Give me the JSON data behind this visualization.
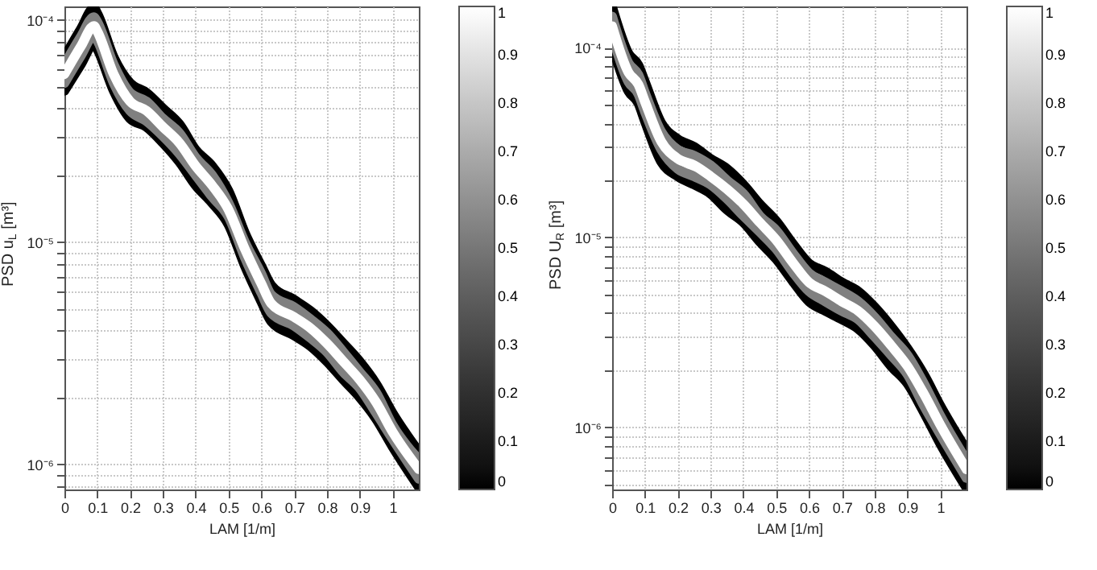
{
  "chart_data": [
    {
      "type": "line",
      "xlabel": "LAM [1/m]",
      "ylabel": "PSD u$_{L}$ [m³]",
      "log": "y",
      "grid": true,
      "x": [
        0,
        0.05,
        0.09,
        0.1,
        0.15,
        0.2,
        0.25,
        0.3,
        0.35,
        0.4,
        0.45,
        0.5,
        0.55,
        0.6,
        0.63,
        0.7,
        0.75,
        0.8,
        0.85,
        0.9,
        0.95,
        1.0,
        1.08
      ],
      "xlim": [
        0,
        1.08
      ],
      "xticks": [
        0,
        0.1,
        0.2,
        0.3,
        0.4,
        0.5,
        0.6,
        0.7,
        0.8,
        0.9,
        1
      ],
      "ylim": [
        7.7e-07,
        0.000115
      ],
      "yticks": [
        {
          "value": 8e-07,
          "label": null
        },
        {
          "value": 9e-07,
          "label": null
        },
        {
          "value": 1e-06,
          "label": "10⁻⁶"
        },
        {
          "value": 2e-06,
          "label": null
        },
        {
          "value": 3e-06,
          "label": null
        },
        {
          "value": 4e-06,
          "label": null
        },
        {
          "value": 5e-06,
          "label": null
        },
        {
          "value": 6e-06,
          "label": null
        },
        {
          "value": 7e-06,
          "label": null
        },
        {
          "value": 8e-06,
          "label": null
        },
        {
          "value": 9e-06,
          "label": null
        },
        {
          "value": 1e-05,
          "label": "10⁻⁵"
        },
        {
          "value": 2e-05,
          "label": null
        },
        {
          "value": 3e-05,
          "label": null
        },
        {
          "value": 4e-05,
          "label": null
        },
        {
          "value": 5e-05,
          "label": null
        },
        {
          "value": 6e-05,
          "label": null
        },
        {
          "value": 7e-05,
          "label": null
        },
        {
          "value": 8e-05,
          "label": null
        },
        {
          "value": 9e-05,
          "label": null
        },
        {
          "value": 0.0001,
          "label": "10⁻⁴"
        }
      ],
      "clim": [
        0,
        1
      ],
      "cticks": [
        0,
        0.1,
        0.2,
        0.3,
        0.4,
        0.5,
        0.6,
        0.7,
        0.8,
        0.9,
        1
      ],
      "series": [
        {
          "color": "#000000",
          "values": [
            6.8e-05,
            9.1e-05,
            0.000113,
            0.000107,
            6.8e-05,
            5.2e-05,
            4.7e-05,
            4e-05,
            3.4e-05,
            2.6e-05,
            2.2e-05,
            1.7e-05,
            1.1e-05,
            7.8e-06,
            6.4e-06,
            5.5e-06,
            4.9e-06,
            4.2e-06,
            3.5e-06,
            2.9e-06,
            2.3e-06,
            1.7e-06,
            1.14e-06
          ]
        },
        {
          "color": "#000000",
          "values": [
            4.8e-05,
            6.3e-05,
            7.8e-05,
            7.4e-05,
            4.8e-05,
            3.6e-05,
            3.3e-05,
            2.8e-05,
            2.3e-05,
            1.8e-05,
            1.5e-05,
            1.2e-05,
            7.8e-06,
            5.4e-06,
            4.4e-06,
            3.8e-06,
            3.4e-06,
            2.9e-06,
            2.4e-06,
            2e-06,
            1.6e-06,
            1.2e-06,
            7.9e-07
          ]
        },
        {
          "color": "#808080",
          "values": [
            6.3e-05,
            8.4e-05,
            0.000103,
            9.8e-05,
            6.3e-05,
            4.7e-05,
            4.3e-05,
            3.6e-05,
            3.1e-05,
            2.4e-05,
            2e-05,
            1.5e-05,
            1e-05,
            7.2e-06,
            5.8e-06,
            5.1e-06,
            4.5e-06,
            3.9e-06,
            3.2e-06,
            2.6e-06,
            2.1e-06,
            1.5e-06,
            1.05e-06
          ]
        },
        {
          "color": "#808080",
          "values": [
            5.2e-05,
            6.9e-05,
            8.5e-05,
            8.1e-05,
            5.2e-05,
            3.9e-05,
            3.5e-05,
            3e-05,
            2.5e-05,
            2e-05,
            1.6e-05,
            1.3e-05,
            8.5e-06,
            5.9e-06,
            4.8e-06,
            4.2e-06,
            3.7e-06,
            3.2e-06,
            2.6e-06,
            2.2e-06,
            1.7e-06,
            1.3e-06,
            8.6e-07
          ]
        },
        {
          "color": "#ffffff",
          "values": [
            5.7e-05,
            7.6e-05,
            9.4e-05,
            8.9e-05,
            5.7e-05,
            4.3e-05,
            3.9e-05,
            3.3e-05,
            2.8e-05,
            2.2e-05,
            1.8e-05,
            1.4e-05,
            9.3e-06,
            6.5e-06,
            5.3e-06,
            4.6e-06,
            4.1e-06,
            3.5e-06,
            2.9e-06,
            2.4e-06,
            1.9e-06,
            1.4e-06,
            9.5e-07
          ]
        }
      ]
    },
    {
      "type": "line",
      "xlabel": "LAM [1/m]",
      "ylabel": "PSD U$_{R}$ [m³]",
      "log": "y",
      "grid": true,
      "x": [
        0,
        0.05,
        0.08,
        0.1,
        0.15,
        0.2,
        0.25,
        0.3,
        0.35,
        0.4,
        0.45,
        0.5,
        0.55,
        0.6,
        0.65,
        0.7,
        0.75,
        0.8,
        0.85,
        0.9,
        0.95,
        1.0,
        1.08
      ],
      "xlim": [
        0,
        1.08
      ],
      "xticks": [
        0,
        0.1,
        0.2,
        0.3,
        0.4,
        0.5,
        0.6,
        0.7,
        0.8,
        0.9,
        1
      ],
      "ylim": [
        4.7e-07,
        0.000165
      ],
      "yticks": [
        {
          "value": 5e-07,
          "label": null
        },
        {
          "value": 6e-07,
          "label": null
        },
        {
          "value": 7e-07,
          "label": null
        },
        {
          "value": 8e-07,
          "label": null
        },
        {
          "value": 9e-07,
          "label": null
        },
        {
          "value": 1e-06,
          "label": "10⁻⁶"
        },
        {
          "value": 2e-06,
          "label": null
        },
        {
          "value": 3e-06,
          "label": null
        },
        {
          "value": 4e-06,
          "label": null
        },
        {
          "value": 5e-06,
          "label": null
        },
        {
          "value": 6e-06,
          "label": null
        },
        {
          "value": 7e-06,
          "label": null
        },
        {
          "value": 8e-06,
          "label": null
        },
        {
          "value": 9e-06,
          "label": null
        },
        {
          "value": 1e-05,
          "label": "10⁻⁵"
        },
        {
          "value": 2e-05,
          "label": null
        },
        {
          "value": 3e-05,
          "label": null
        },
        {
          "value": 4e-05,
          "label": null
        },
        {
          "value": 5e-05,
          "label": null
        },
        {
          "value": 6e-05,
          "label": null
        },
        {
          "value": 7e-05,
          "label": null
        },
        {
          "value": 8e-05,
          "label": null
        },
        {
          "value": 9e-05,
          "label": null
        },
        {
          "value": 0.0001,
          "label": "10⁻⁴"
        }
      ],
      "clim": [
        0,
        1
      ],
      "cticks": [
        0,
        0.1,
        0.2,
        0.3,
        0.4,
        0.5,
        0.6,
        0.7,
        0.8,
        0.9,
        1
      ],
      "series": [
        {
          "color": "#000000",
          "values": [
            0.000164,
            9.3e-05,
            8.1e-05,
            6.6e-05,
            4e-05,
            3.3e-05,
            3e-05,
            2.6e-05,
            2.3e-05,
            1.9e-05,
            1.5e-05,
            1.22e-05,
            9.3e-06,
            7.3e-06,
            6.6e-06,
            5.8e-06,
            5.2e-06,
            4.3e-06,
            3.4e-06,
            2.6e-06,
            1.9e-06,
            1.3e-06,
            7.6e-07
          ]
        },
        {
          "color": "#000000",
          "values": [
            0.000103,
            5.9e-05,
            5.1e-05,
            4.1e-05,
            2.5e-05,
            2.1e-05,
            1.9e-05,
            1.7e-05,
            1.4e-05,
            1.2e-05,
            9.5e-06,
            7.7e-06,
            5.9e-06,
            4.6e-06,
            4.1e-06,
            3.7e-06,
            3.3e-06,
            2.7e-06,
            2.1e-06,
            1.7e-06,
            1.2e-06,
            8.2e-07,
            4.8e-07
          ]
        },
        {
          "color": "#808080",
          "values": [
            0.000146,
            8.3e-05,
            7.2e-05,
            5.8e-05,
            3.6e-05,
            2.9e-05,
            2.7e-05,
            2.4e-05,
            2e-05,
            1.7e-05,
            1.3e-05,
            1.09e-05,
            8.3e-06,
            6.5e-06,
            5.8e-06,
            5.2e-06,
            4.6e-06,
            3.8e-06,
            3e-06,
            2.4e-06,
            1.7e-06,
            1.15e-06,
            6.7e-07
          ]
        },
        {
          "color": "#808080",
          "values": [
            0.000116,
            6.6e-05,
            5.7e-05,
            4.6e-05,
            2.9e-05,
            2.3e-05,
            2.1e-05,
            1.9e-05,
            1.6e-05,
            1.3e-05,
            1.07e-05,
            8.7e-06,
            6.6e-06,
            5.2e-06,
            4.6e-06,
            4.1e-06,
            3.7e-06,
            3e-06,
            2.4e-06,
            1.9e-06,
            1.3e-06,
            9.2e-07,
            5.4e-07
          ]
        },
        {
          "color": "#ffffff",
          "values": [
            0.00013,
            7.4e-05,
            6.4e-05,
            5.2e-05,
            3.2e-05,
            2.6e-05,
            2.4e-05,
            2.1e-05,
            1.8e-05,
            1.5e-05,
            1.2e-05,
            9.7e-06,
            7.4e-06,
            5.8e-06,
            5.2e-06,
            4.6e-06,
            4.1e-06,
            3.4e-06,
            2.7e-06,
            2.1e-06,
            1.5e-06,
            1.03e-06,
            6e-07
          ]
        }
      ]
    }
  ]
}
